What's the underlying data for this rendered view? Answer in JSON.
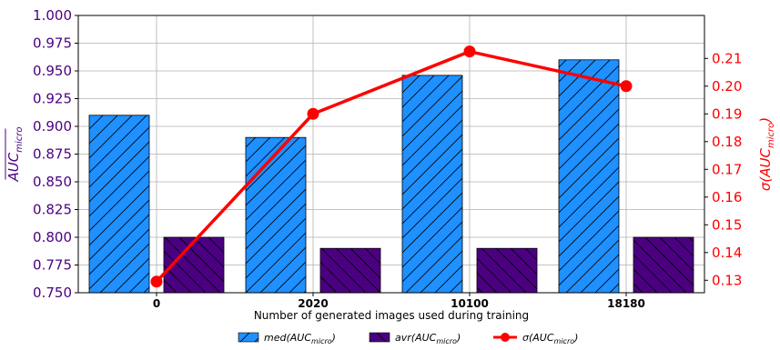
{
  "chart_data": {
    "type": "bar",
    "categories": [
      "0",
      "2020",
      "10100",
      "18180"
    ],
    "xlabel": "Number of generated images used during training",
    "ylabel_left": "AUC_micro (mean)",
    "ylabel_left_main": "AUC",
    "ylabel_left_sub": "micro",
    "ylabel_right_prefix": "σ(",
    "ylabel_right_main": "AUC",
    "ylabel_right_sub": "micro",
    "ylabel_right_suffix": ")",
    "ylim_left": [
      0.75,
      1.0
    ],
    "ylim_right": [
      0.1255,
      0.2255
    ],
    "yticks_left": [
      "0.750",
      "0.775",
      "0.800",
      "0.825",
      "0.850",
      "0.875",
      "0.900",
      "0.925",
      "0.950",
      "0.975",
      "1.000"
    ],
    "yticks_right": [
      "0.13",
      "0.14",
      "0.15",
      "0.16",
      "0.17",
      "0.18",
      "0.19",
      "0.20",
      "0.21"
    ],
    "grid": true,
    "legend_placement": "bottom-center",
    "series": [
      {
        "name": "med(AUC_micro)",
        "legend_prefix": "med(",
        "legend_main": "AUC",
        "legend_sub": "micro",
        "legend_suffix": ")",
        "kind": "bar",
        "axis": "left",
        "color": "#1e90ff",
        "hatch": "//",
        "values": [
          0.91,
          0.89,
          0.946,
          0.96
        ]
      },
      {
        "name": "avr(AUC_micro)",
        "legend_prefix": "avr(",
        "legend_main": "AUC",
        "legend_sub": "micro",
        "legend_suffix": ")",
        "kind": "bar",
        "axis": "left",
        "color": "#4b0082",
        "hatch": "\\\\",
        "values": [
          0.8,
          0.79,
          0.79,
          0.8
        ]
      },
      {
        "name": "σ(AUC_micro)",
        "legend_prefix": "σ(",
        "legend_main": "AUC",
        "legend_sub": "micro",
        "legend_suffix": ")",
        "kind": "line",
        "axis": "right",
        "color": "#ff0000",
        "values": [
          0.1295,
          0.19,
          0.2125,
          0.2
        ]
      }
    ]
  }
}
